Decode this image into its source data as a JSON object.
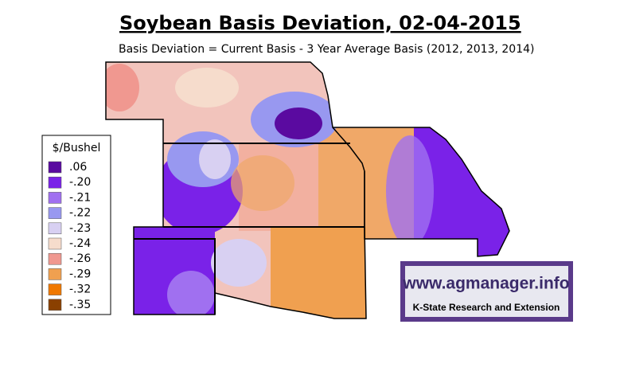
{
  "title": "Soybean Basis Deviation, 02-04-2015",
  "subtitle": "Basis Deviation = Current Basis - 3 Year Average Basis (2012, 2013, 2014)",
  "legend": {
    "title": "$/Bushel",
    "items": [
      {
        "label": ".06",
        "color": "#5a0aa0"
      },
      {
        "label": "-.20",
        "color": "#7a22e8"
      },
      {
        "label": "-.21",
        "color": "#a070f0"
      },
      {
        "label": "-.22",
        "color": "#9898f0"
      },
      {
        "label": "-.23",
        "color": "#d8d0f2"
      },
      {
        "label": "-.24",
        "color": "#f6dccc"
      },
      {
        "label": "-.26",
        "color": "#f09890"
      },
      {
        "label": "-.29",
        "color": "#f0a050"
      },
      {
        "label": "-.32",
        "color": "#f07800"
      },
      {
        "label": "-.35",
        "color": "#8a4000"
      }
    ]
  },
  "logo": {
    "url": "www.agmanager.info",
    "org": "K-State Research and Extension"
  }
}
